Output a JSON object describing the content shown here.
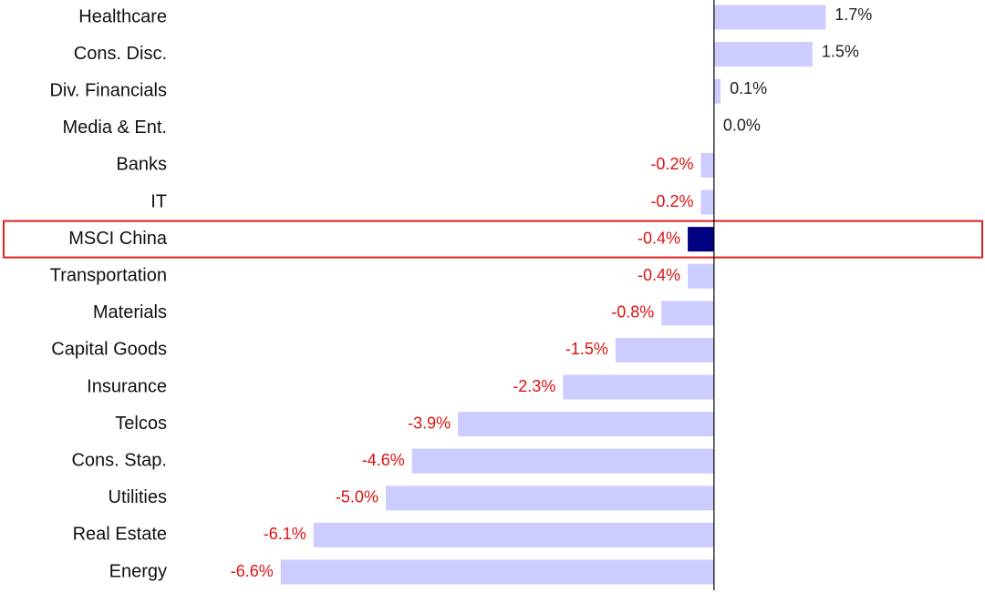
{
  "chart_data": {
    "type": "hbar",
    "categories": [
      "Healthcare",
      "Cons. Disc.",
      "Div. Financials",
      "Media & Ent.",
      "Banks",
      "IT",
      "MSCI China",
      "Transportation",
      "Materials",
      "Capital Goods",
      "Insurance",
      "Telcos",
      "Cons. Stap.",
      "Utilities",
      "Real Estate",
      "Energy"
    ],
    "values": [
      1.7,
      1.5,
      0.1,
      0.0,
      -0.2,
      -0.2,
      -0.4,
      -0.4,
      -0.8,
      -1.5,
      -2.3,
      -3.9,
      -4.6,
      -5.0,
      -6.1,
      -6.6
    ],
    "value_labels": [
      "1.7%",
      "1.5%",
      "0.1%",
      "0.0%",
      "-0.2%",
      "-0.2%",
      "-0.4%",
      "-0.4%",
      "-0.8%",
      "-1.5%",
      "-2.3%",
      "-3.9%",
      "-4.6%",
      "-5.0%",
      "-6.1%",
      "-6.6%"
    ],
    "color": "#ccccff",
    "positive_label_color": "#222222",
    "negative_label_color": "#dd1111",
    "highlight": {
      "index": 6,
      "color": "#000080",
      "box_color": "#e02020"
    },
    "xlim": [
      -7.5,
      4.1
    ]
  }
}
